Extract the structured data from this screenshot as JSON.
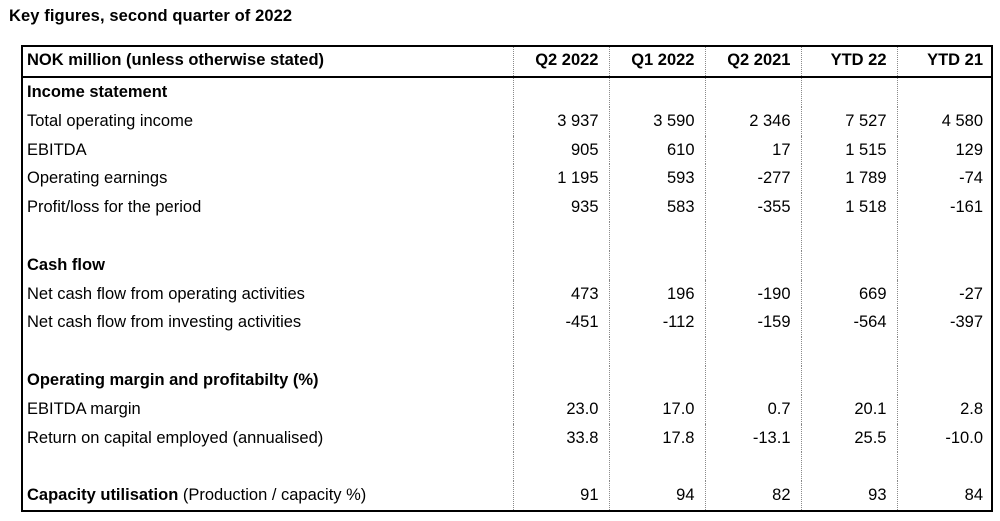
{
  "caption": "Key figures, second quarter of 2022",
  "header": {
    "label": "NOK million (unless otherwise stated)",
    "columns": [
      "Q2 2022",
      "Q1 2022",
      "Q2 2021",
      "YTD 22",
      "YTD 21"
    ]
  },
  "income": {
    "title": "Income statement",
    "rows": [
      {
        "label": "Total operating income",
        "values": [
          "3 937",
          "3 590",
          "2 346",
          "7 527",
          "4 580"
        ]
      },
      {
        "label": "EBITDA",
        "values": [
          "905",
          "610",
          "17",
          "1 515",
          "129"
        ]
      },
      {
        "label": "Operating earnings",
        "values": [
          "1 195",
          "593",
          "-277",
          "1 789",
          "-74"
        ]
      },
      {
        "label": "Profit/loss for the period",
        "values": [
          "935",
          "583",
          "-355",
          "1 518",
          "-161"
        ]
      }
    ]
  },
  "cashflow": {
    "title": "Cash flow",
    "rows": [
      {
        "label": "Net cash flow from operating activities",
        "values": [
          "473",
          "196",
          "-190",
          "669",
          "-27"
        ]
      },
      {
        "label": "Net cash flow from investing activities",
        "values": [
          "-451",
          "-112",
          "-159",
          "-564",
          "-397"
        ]
      }
    ]
  },
  "margin": {
    "title": "Operating margin and profitabilty (%)",
    "rows": [
      {
        "label": "EBITDA margin",
        "values": [
          "23.0",
          "17.0",
          "0.7",
          "20.1",
          "2.8"
        ]
      },
      {
        "label": "Return on capital employed (annualised)",
        "values": [
          "33.8",
          "17.8",
          "-13.1",
          "25.5",
          "-10.0"
        ]
      }
    ]
  },
  "capacity": {
    "label_bold": "Capacity utilisation",
    "label_rest": " (Production / capacity %)",
    "values": [
      "91",
      "94",
      "82",
      "93",
      "84"
    ]
  }
}
